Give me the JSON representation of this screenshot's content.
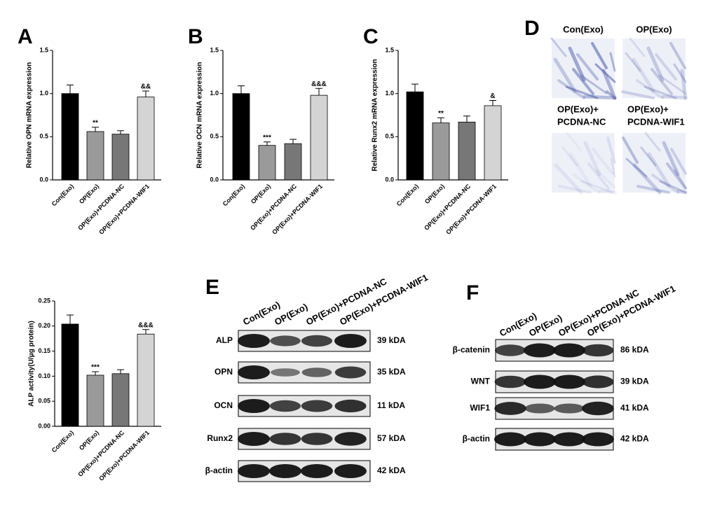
{
  "chart_data": [
    {
      "type": "bar",
      "letter": "A",
      "y_label": "Relative OPN mRNA expression",
      "categories": [
        "Con(Exo)",
        "OP(Exo)",
        "OP(Exo)+PCDNA-NC",
        "OP(Exo)+PCDNA-WIF1"
      ],
      "values": [
        1.0,
        0.56,
        0.53,
        0.96
      ],
      "errors": [
        0.1,
        0.05,
        0.04,
        0.07
      ],
      "annotations": [
        null,
        "**",
        null,
        "&&"
      ],
      "colors": [
        "#000000",
        "#9a9a9a",
        "#777777",
        "#d4d4d4"
      ],
      "ylim": [
        0,
        1.5
      ],
      "yticks": [
        {
          "value": 0,
          "label": "0.0"
        },
        0.5,
        {
          "value": 1,
          "label": "1.0"
        },
        1.5
      ]
    },
    {
      "type": "bar",
      "letter": "B",
      "y_label": "Relative OCN mRNA expression",
      "categories": [
        "Con(Exo)",
        "OP(Exo)",
        "OP(Exo)+PCDNA-NC",
        "OP(Exo)+PCDNA-WIF1"
      ],
      "values": [
        1.0,
        0.4,
        0.42,
        0.98
      ],
      "errors": [
        0.09,
        0.04,
        0.05,
        0.08
      ],
      "annotations": [
        null,
        "***",
        null,
        "&&&"
      ],
      "colors": [
        "#000000",
        "#9a9a9a",
        "#777777",
        "#d4d4d4"
      ],
      "ylim": [
        0,
        1.5
      ],
      "yticks": [
        {
          "value": 0,
          "label": "0.0"
        },
        0.5,
        {
          "value": 1,
          "label": "1.0"
        },
        1.5
      ]
    },
    {
      "type": "bar",
      "letter": "C",
      "y_label": "Relative Runx2 mRNA expression",
      "categories": [
        "Con(Exo)",
        "OP(Exo)",
        "OP(Exo)+PCDNA-NC",
        "OP(Exo)+PCDNA-WIF1"
      ],
      "values": [
        1.02,
        0.66,
        0.67,
        0.86
      ],
      "errors": [
        0.09,
        0.06,
        0.07,
        0.06
      ],
      "annotations": [
        null,
        "**",
        null,
        "&"
      ],
      "colors": [
        "#000000",
        "#9a9a9a",
        "#777777",
        "#d4d4d4"
      ],
      "ylim": [
        0,
        1.5
      ],
      "yticks": [
        {
          "value": 0,
          "label": "0.0"
        },
        0.5,
        {
          "value": 1,
          "label": "1.0"
        },
        1.5
      ]
    },
    {
      "type": "bar",
      "y_label": "ALP activity(U/μg protein)",
      "categories": [
        "Con(Exo)",
        "OP(Exo)",
        "OP(Exo)+PCDNA-NC",
        "OP(Exo)+PCDNA-WIF1"
      ],
      "values": [
        0.204,
        0.102,
        0.105,
        0.184
      ],
      "errors": [
        0.018,
        0.007,
        0.008,
        0.009
      ],
      "annotations": [
        null,
        "***",
        null,
        "&&&"
      ],
      "colors": [
        "#000000",
        "#9a9a9a",
        "#777777",
        "#d4d4d4"
      ],
      "ylim": [
        0,
        0.25
      ],
      "yticks": [
        {
          "value": 0,
          "label": "0.00"
        },
        0.05,
        {
          "value": 0.1,
          "label": "0.10"
        },
        0.15,
        {
          "value": 0.2,
          "label": "0.20"
        },
        0.25
      ]
    }
  ],
  "staining": {
    "letter": "D",
    "images": [
      {
        "label": [
          "Con(Exo)"
        ]
      },
      {
        "label": [
          "OP(Exo)"
        ]
      },
      {
        "label": [
          "OP(Exo)+",
          "PCDNA-NC"
        ]
      },
      {
        "label": [
          "OP(Exo)+",
          "PCDNA-WIF1"
        ]
      }
    ]
  },
  "blots": [
    {
      "letter": "E",
      "lanes": [
        "Con(Exo)",
        "OP(Exo)",
        "OP(Exo)+PCDNA-NC",
        "OP(Exo)+PCDNA-WIF1"
      ],
      "rows": [
        {
          "name": "ALP",
          "size": "39 kDA"
        },
        {
          "name": "OPN",
          "size": "35 kDA"
        },
        {
          "name": "OCN",
          "size": "11 kDA"
        },
        {
          "name": "Runx2",
          "size": "57 kDA"
        },
        {
          "name": "β-actin",
          "size": "42 kDA"
        }
      ]
    },
    {
      "letter": "F",
      "lanes": [
        "Con(Exo)",
        "OP(Exo)",
        "OP(Exo)+PCDNA-NC",
        "OP(Exo)+PCDNA-WIF1"
      ],
      "rows": [
        {
          "name": "β-catenin",
          "size": "86 kDA"
        },
        {
          "name": "WNT",
          "size": "39 kDA"
        },
        {
          "name": "WIF1",
          "size": "41 kDA"
        },
        {
          "name": "β-actin",
          "size": "42 kDA"
        }
      ]
    }
  ]
}
